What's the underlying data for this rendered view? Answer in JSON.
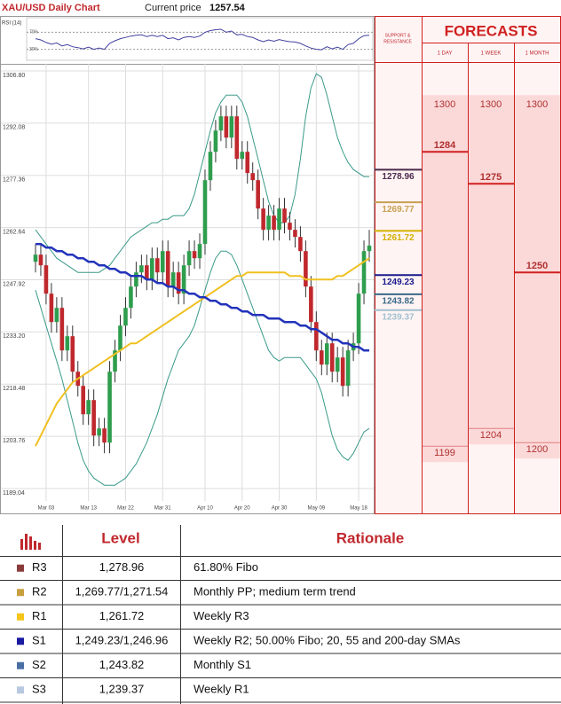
{
  "chart_data": {
    "type": "candlestick",
    "title": "XAU/USD Daily Chart",
    "current_price_label": "Current price",
    "current_price": 1257.54,
    "up_color": "#2e9e4e",
    "down_color": "#c0282d",
    "grid": true,
    "categories": [
      null,
      null,
      "Mar 03",
      null,
      null,
      null,
      null,
      null,
      null,
      null,
      "Mar 13",
      null,
      null,
      null,
      null,
      null,
      null,
      "Mar 22",
      null,
      null,
      null,
      null,
      null,
      null,
      "Mar 31",
      null,
      null,
      null,
      null,
      null,
      null,
      null,
      "Apr 10",
      null,
      null,
      null,
      null,
      null,
      null,
      "Apr 20",
      null,
      null,
      null,
      null,
      null,
      null,
      "Apr 30",
      null,
      null,
      null,
      null,
      null,
      null,
      "May 09",
      null,
      null,
      null,
      null,
      null,
      null,
      null,
      "May 18",
      null,
      null
    ],
    "open": [
      1253,
      1255,
      1252,
      1244,
      1236,
      1240,
      1228,
      1232,
      1222,
      1218,
      1210,
      1214,
      1204,
      1206,
      1202,
      1222,
      1228,
      1235,
      1240,
      1246,
      1250,
      1252,
      1248,
      1254,
      1250,
      1256,
      1246,
      1250,
      1244,
      1252,
      1256,
      1254,
      1258,
      1276,
      1284,
      1290,
      1294,
      1288,
      1294,
      1282,
      1284,
      1278,
      1276,
      1268,
      1262,
      1266,
      1262,
      1268,
      1264,
      1262,
      1260,
      1256,
      1246,
      1236,
      1228,
      1224,
      1230,
      1222,
      1226,
      1218,
      1228,
      1230,
      1244,
      1256
    ],
    "high": [
      1258,
      1258,
      1255,
      1247,
      1243,
      1243,
      1235,
      1235,
      1225,
      1221,
      1217,
      1217,
      1209,
      1209,
      1225,
      1231,
      1238,
      1243,
      1249,
      1253,
      1255,
      1255,
      1257,
      1257,
      1259,
      1259,
      1253,
      1253,
      1255,
      1259,
      1259,
      1261,
      1279,
      1287,
      1293,
      1297,
      1297,
      1297,
      1297,
      1287,
      1287,
      1281,
      1279,
      1271,
      1269,
      1269,
      1271,
      1271,
      1267,
      1265,
      1263,
      1259,
      1249,
      1239,
      1231,
      1233,
      1233,
      1229,
      1229,
      1231,
      1233,
      1247,
      1259,
      1262
    ],
    "low": [
      1250,
      1249,
      1241,
      1233,
      1233,
      1225,
      1225,
      1219,
      1215,
      1207,
      1207,
      1201,
      1201,
      1199,
      1199,
      1219,
      1225,
      1232,
      1237,
      1243,
      1247,
      1245,
      1245,
      1247,
      1247,
      1243,
      1243,
      1241,
      1241,
      1249,
      1251,
      1251,
      1255,
      1273,
      1281,
      1287,
      1285,
      1285,
      1279,
      1279,
      1275,
      1273,
      1265,
      1259,
      1259,
      1259,
      1259,
      1261,
      1259,
      1257,
      1253,
      1243,
      1233,
      1225,
      1221,
      1221,
      1219,
      1219,
      1215,
      1215,
      1225,
      1227,
      1241,
      1253
    ],
    "close": [
      1255,
      1252,
      1244,
      1236,
      1240,
      1228,
      1232,
      1222,
      1218,
      1210,
      1214,
      1204,
      1206,
      1202,
      1222,
      1228,
      1235,
      1240,
      1246,
      1250,
      1252,
      1248,
      1254,
      1250,
      1256,
      1246,
      1250,
      1244,
      1252,
      1256,
      1254,
      1258,
      1276,
      1284,
      1290,
      1294,
      1288,
      1294,
      1282,
      1284,
      1278,
      1276,
      1268,
      1262,
      1266,
      1262,
      1268,
      1264,
      1262,
      1260,
      1256,
      1246,
      1236,
      1228,
      1224,
      1230,
      1222,
      1226,
      1218,
      1228,
      1230,
      1244,
      1256,
      1257.54
    ],
    "series": [
      {
        "color": "#3a9a8a",
        "width": 1,
        "values": [
          1262,
          1260,
          1258,
          1256,
          1254,
          1253,
          1252,
          1251,
          1250,
          1250,
          1250,
          1250,
          1250,
          1251,
          1252,
          1254,
          1256,
          1258,
          1260,
          1261,
          1262,
          1263,
          1264,
          1264,
          1265,
          1265,
          1266,
          1266,
          1266,
          1268,
          1272,
          1278,
          1284,
          1290,
          1295,
          1298,
          1300,
          1300,
          1300,
          1298,
          1294,
          1288,
          1282,
          1276,
          1270,
          1266,
          1264,
          1264,
          1266,
          1272,
          1282,
          1294,
          1302,
          1306,
          1305,
          1300,
          1294,
          1288,
          1284,
          1281,
          1279,
          1278,
          1277,
          1277
        ]
      },
      {
        "color": "#3a9a8a",
        "width": 1,
        "values": [
          1245,
          1240,
          1235,
          1230,
          1225,
          1220,
          1214,
          1208,
          1202,
          1197,
          1194,
          1192,
          1191,
          1190,
          1190,
          1190,
          1191,
          1192,
          1194,
          1196,
          1199,
          1202,
          1206,
          1210,
          1215,
          1220,
          1224,
          1228,
          1230,
          1232,
          1235,
          1240,
          1245,
          1250,
          1254,
          1256,
          1256,
          1255,
          1252,
          1248,
          1244,
          1240,
          1236,
          1232,
          1228,
          1226,
          1225,
          1226,
          1226,
          1226,
          1226,
          1224,
          1222,
          1220,
          1216,
          1210,
          1204,
          1200,
          1198,
          1197,
          1199,
          1202,
          1205,
          1206
        ]
      },
      {
        "color": "#f0c020",
        "width": 2,
        "values": [
          1201,
          1204,
          1207,
          1210,
          1213,
          1215,
          1217,
          1219,
          1220,
          1221,
          1222,
          1223,
          1224,
          1225,
          1226,
          1227,
          1228,
          1229,
          1230,
          1230,
          1231,
          1232,
          1233,
          1234,
          1235,
          1236,
          1237,
          1238,
          1239,
          1240,
          1241,
          1242,
          1243,
          1244,
          1245,
          1246,
          1247,
          1248,
          1249,
          1249,
          1250,
          1250,
          1250,
          1250,
          1250,
          1250,
          1250,
          1250,
          1249,
          1249,
          1249,
          1248,
          1248,
          1248,
          1248,
          1248,
          1248,
          1249,
          1249,
          1250,
          1251,
          1252,
          1253,
          1254
        ]
      },
      {
        "color": "#2233bb",
        "width": 2.5,
        "values": [
          1258,
          1258,
          1257,
          1257,
          1256,
          1256,
          1255,
          1255,
          1254,
          1254,
          1253,
          1253,
          1252,
          1252,
          1251,
          1251,
          1250,
          1250,
          1249,
          1249,
          1249,
          1248,
          1248,
          1247,
          1247,
          1246,
          1246,
          1245,
          1245,
          1244,
          1244,
          1243,
          1243,
          1242,
          1242,
          1241,
          1241,
          1240,
          1240,
          1239,
          1239,
          1238,
          1238,
          1238,
          1237,
          1237,
          1237,
          1236,
          1236,
          1236,
          1235,
          1235,
          1234,
          1234,
          1233,
          1232,
          1231,
          1231,
          1230,
          1230,
          1229,
          1229,
          1228,
          1228
        ]
      }
    ],
    "ylim": [
      1181.8,
      1308.8
    ],
    "yticks": [
      {
        "value": 1306.8,
        "label": "1306.80"
      },
      1292.08,
      1277.36,
      1262.64,
      1247.92,
      {
        "value": 1233.2,
        "label": "1233.20"
      },
      1218.48,
      1203.76,
      1189.04
    ],
    "rsi": {
      "label": "RSI (14)",
      "color": "#4040a0",
      "ylim": [
        0,
        100
      ],
      "yticks": [
        {
          "value": 70,
          "label": "70%"
        },
        {
          "value": 30,
          "label": "30%"
        }
      ],
      "values": [
        55,
        52,
        46,
        42,
        45,
        38,
        41,
        36,
        34,
        31,
        35,
        30,
        33,
        30,
        44,
        50,
        55,
        58,
        61,
        63,
        64,
        60,
        63,
        60,
        63,
        55,
        57,
        52,
        58,
        60,
        58,
        61,
        70,
        74,
        76,
        77,
        70,
        73,
        64,
        65,
        60,
        58,
        52,
        48,
        52,
        49,
        53,
        50,
        48,
        47,
        44,
        38,
        33,
        30,
        29,
        36,
        31,
        35,
        30,
        41,
        44,
        55,
        62,
        63
      ]
    },
    "sr_header": [
      "SUPPORT &",
      "RESISTANCE"
    ],
    "levels": [
      {
        "value": 1278.96,
        "color": "#4b2a4b"
      },
      {
        "value": 1269.77,
        "color": "#c8a050"
      },
      {
        "value": 1261.72,
        "color": "#d4b000"
      },
      {
        "value": 1249.23,
        "color": "#1a1a8c"
      },
      {
        "value": 1243.82,
        "color": "#3a6a8a"
      },
      {
        "value": 1239.37,
        "color": "#a0c0d0"
      }
    ],
    "forecasts": {
      "title": "FORECASTS",
      "columns": [
        {
          "label": "1 DAY",
          "high": 1300,
          "mid": 1284,
          "low": 1199
        },
        {
          "label": "1 WEEK",
          "high": 1300,
          "mid": 1275,
          "low": 1204
        },
        {
          "label": "1 MONTH",
          "high": 1300,
          "mid": 1250,
          "low": 1200
        }
      ]
    }
  },
  "table": {
    "header": {
      "level": "Level",
      "rationale": "Rationale"
    },
    "rows": [
      {
        "color": "#8b3a3a",
        "code": "R3",
        "level": "1,278.96",
        "rationale": "61.80% Fibo"
      },
      {
        "color": "#c8a040",
        "code": "R2",
        "level": "1,269.77/1,271.54",
        "rationale": "Monthly PP; medium term trend"
      },
      {
        "color": "#f5c518",
        "code": "R1",
        "level": "1,261.72",
        "rationale": "Weekly R3"
      },
      {
        "color": "#1a1aa0",
        "code": "S1",
        "level": "1,249.23/1,246.96",
        "rationale": "Weekly R2; 50.00% Fibo; 20, 55 and 200-day SMAs"
      },
      {
        "color": "#4a6fa5",
        "code": "S2",
        "level": "1,243.82",
        "rationale": "Monthly S1"
      },
      {
        "color": "#b8c8e0",
        "code": "S3",
        "level": "1,239.37",
        "rationale": "Weekly R1"
      }
    ]
  }
}
